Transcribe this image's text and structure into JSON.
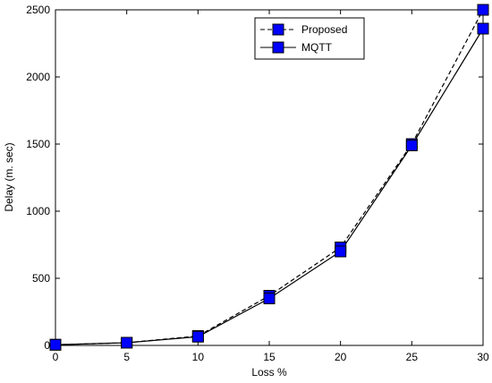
{
  "chart_data": {
    "type": "line",
    "title": "",
    "xlabel": "Loss %",
    "ylabel": "Delay (m. sec)",
    "x": [
      0,
      5,
      10,
      15,
      20,
      25,
      30
    ],
    "xlim": [
      0,
      30
    ],
    "ylim": [
      0,
      2500
    ],
    "xticks": [
      "0",
      "5",
      "10",
      "15",
      "20",
      "25",
      "30"
    ],
    "yticks": [
      "0",
      "500",
      "1000",
      "1500",
      "2000",
      "2500"
    ],
    "grid": false,
    "legend_position": "top-right",
    "series": [
      {
        "name": "Proposed",
        "style": "dashed",
        "marker": "square",
        "line_color": "#000000",
        "marker_color": "#0000ff",
        "values": [
          5,
          20,
          70,
          370,
          730,
          1500,
          2500
        ]
      },
      {
        "name": "MQTT",
        "style": "solid",
        "marker": "square",
        "line_color": "#000000",
        "marker_color": "#0000ff",
        "values": [
          5,
          20,
          65,
          350,
          700,
          1490,
          2360
        ]
      }
    ]
  }
}
